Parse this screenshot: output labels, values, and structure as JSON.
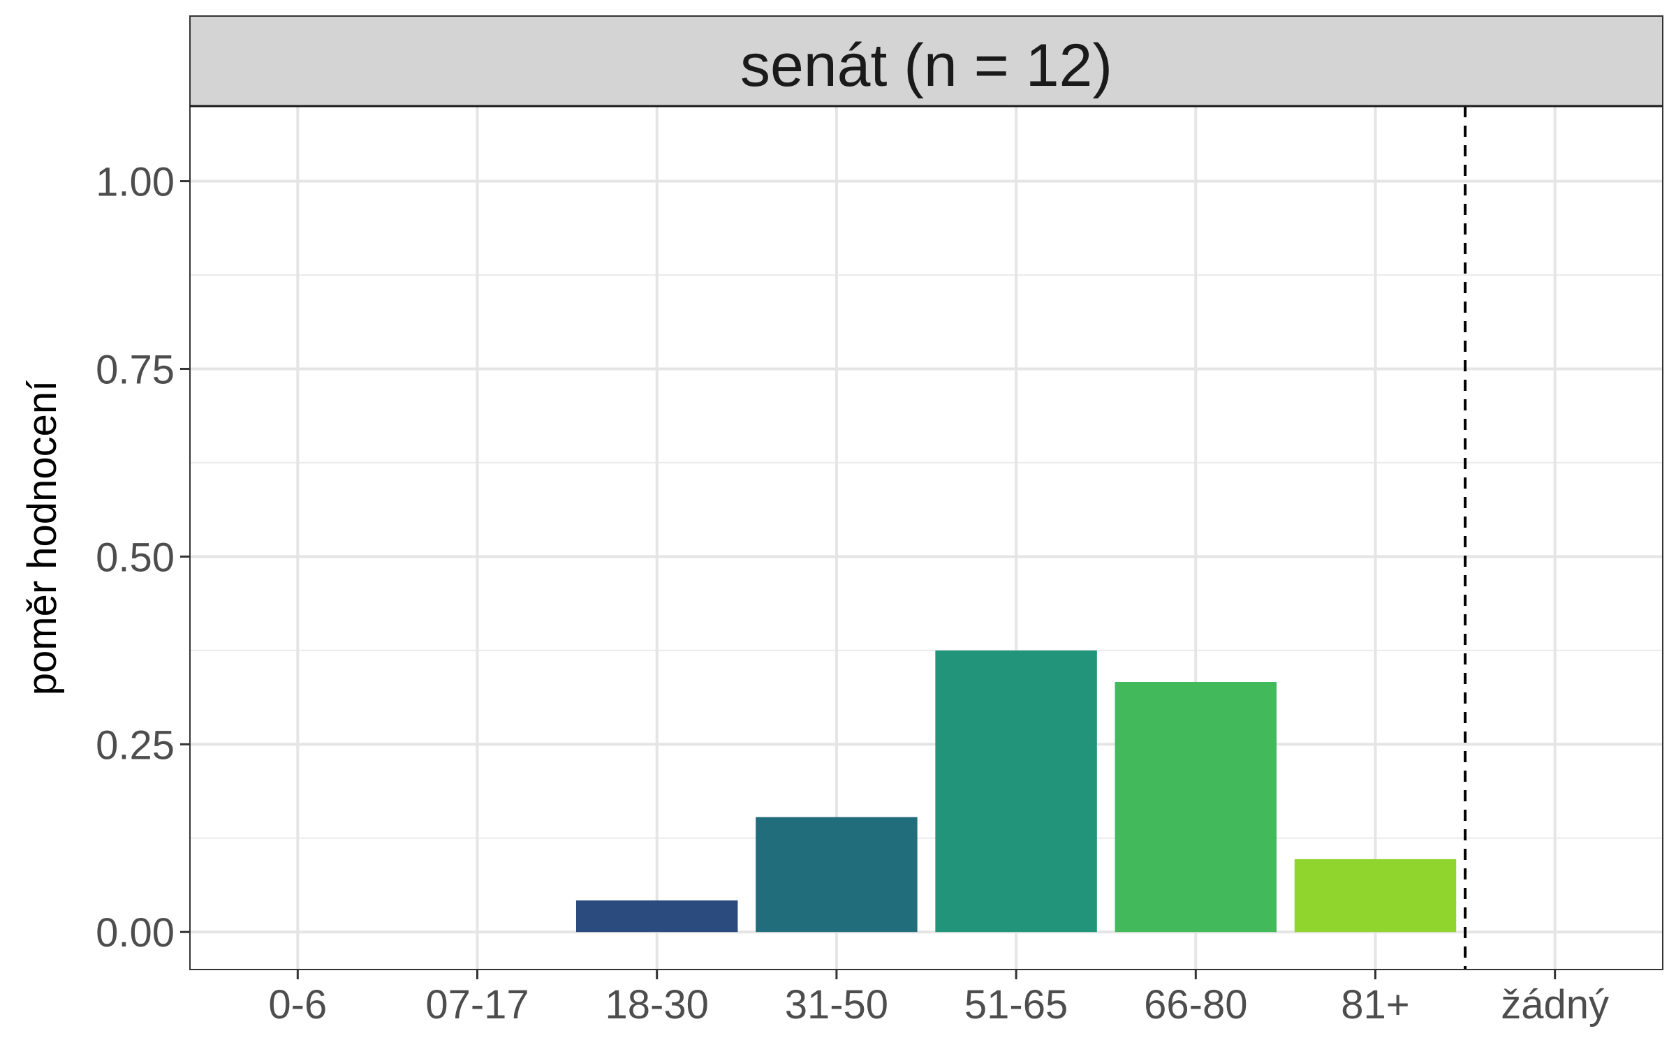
{
  "chart_data": {
    "type": "bar",
    "facet_title": "senát (n = 12)",
    "categories": [
      "0-6",
      "07-17",
      "18-30",
      "31-50",
      "51-65",
      "66-80",
      "81+",
      "žádný"
    ],
    "values": [
      0,
      0,
      0.042,
      0.153,
      0.375,
      0.333,
      0.097,
      0
    ],
    "colors": [
      "#440154",
      "#46337e",
      "#2b4a7e",
      "#226d7c",
      "#21947a",
      "#42b95a",
      "#8fd52e",
      "#fde725"
    ],
    "ylabel": "poměr hodnocení",
    "xlabel": "",
    "ylim": [
      -0.05,
      1.1
    ],
    "yticks": [
      0,
      0.25,
      0.5,
      0.75,
      1
    ],
    "ytick_labels": [
      "0.00",
      "0.25",
      "0.50",
      "0.75",
      "1.00"
    ],
    "reference_line": {
      "between": [
        "81+",
        "žádný"
      ],
      "style": "dashed"
    },
    "grid": true,
    "legend": "none"
  }
}
